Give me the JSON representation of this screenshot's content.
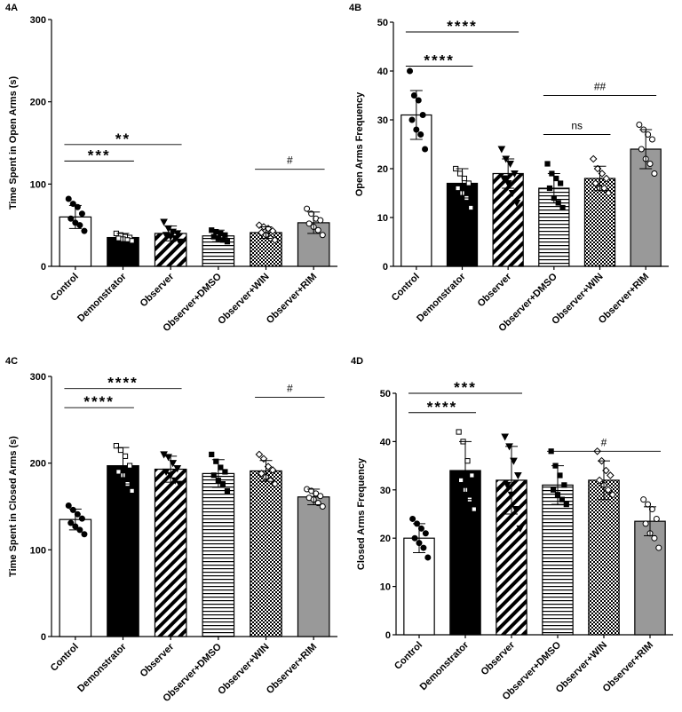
{
  "chart_data": [
    {
      "id": "4A",
      "type": "bar",
      "panel_label": "4A",
      "ylabel": "Time Spent in Open Arms (s)",
      "ylim": [
        0,
        300
      ],
      "yticks": [
        0,
        100,
        200,
        300
      ],
      "categories": [
        "Control",
        "Demonstrator",
        "Observer",
        "Observer+DMSO",
        "Observer+WIN",
        "Observer+RIM"
      ],
      "values": [
        60,
        35,
        40,
        37,
        41,
        53
      ],
      "error": [
        14,
        5,
        9,
        7,
        7,
        13
      ],
      "points": [
        [
          82,
          76,
          72,
          64,
          58,
          53,
          50,
          43
        ],
        [
          40,
          38,
          36,
          35,
          34,
          33,
          32,
          31
        ],
        [
          54,
          46,
          42,
          40,
          38,
          36,
          34,
          30
        ],
        [
          44,
          42,
          40,
          38,
          36,
          34,
          32,
          30
        ],
        [
          50,
          48,
          46,
          43,
          41,
          38,
          34,
          32
        ],
        [
          70,
          64,
          58,
          56,
          52,
          48,
          44,
          38
        ]
      ],
      "annotations": [
        {
          "text": "***",
          "from": 0,
          "to": 1,
          "y": 128
        },
        {
          "text": "**",
          "from": 0,
          "to": 2,
          "y": 148
        },
        {
          "text": "#",
          "from": 4,
          "to": 5,
          "y": 118
        }
      ]
    },
    {
      "id": "4B",
      "type": "bar",
      "panel_label": "4B",
      "ylabel": "Open Arms Frequency",
      "ylim": [
        0,
        50
      ],
      "yticks": [
        0,
        10,
        20,
        30,
        40,
        50
      ],
      "categories": [
        "Control",
        "Demonstrator",
        "Observer",
        "Observer+DMSO",
        "Observer+WIN",
        "Observer+RIM"
      ],
      "values": [
        31,
        17,
        19,
        16,
        18,
        24
      ],
      "error": [
        5,
        3,
        3,
        3,
        2.5,
        4
      ],
      "points": [
        [
          40,
          35,
          34,
          31,
          30,
          28,
          27,
          24
        ],
        [
          20,
          19,
          18,
          17,
          16,
          15,
          14,
          12
        ],
        [
          24,
          22,
          21,
          19,
          18,
          17,
          15,
          13
        ],
        [
          21,
          19,
          18,
          17,
          16,
          14,
          13,
          12
        ],
        [
          22,
          20,
          19,
          18,
          17,
          16,
          16,
          15
        ],
        [
          29,
          28,
          27,
          26,
          24,
          22,
          21,
          19
        ]
      ],
      "annotations": [
        {
          "text": "****",
          "from": 0,
          "to": 1,
          "y": 41
        },
        {
          "text": "****",
          "from": 0,
          "to": 2,
          "y": 48
        },
        {
          "text": "ns",
          "from": 3,
          "to": 4,
          "y": 27
        },
        {
          "text": "##",
          "from": 3,
          "to": 5,
          "y": 35
        }
      ]
    },
    {
      "id": "4C",
      "type": "bar",
      "panel_label": "4C",
      "ylabel": "Time Spent in Closed Arms (s)",
      "ylim": [
        0,
        300
      ],
      "yticks": [
        0,
        100,
        200,
        300
      ],
      "categories": [
        "Control",
        "Demonstrator",
        "Observer",
        "Observer+DMSO",
        "Observer+WIN",
        "Observer+RIM"
      ],
      "values": [
        135,
        197,
        193,
        188,
        191,
        161
      ],
      "error": [
        12,
        21,
        15,
        16,
        12,
        9
      ],
      "points": [
        [
          151,
          146,
          141,
          136,
          131,
          127,
          123,
          118
        ],
        [
          220,
          215,
          208,
          197,
          190,
          186,
          176,
          168
        ],
        [
          210,
          207,
          200,
          194,
          190,
          186,
          180,
          176
        ],
        [
          210,
          202,
          195,
          190,
          186,
          180,
          176,
          168
        ],
        [
          210,
          205,
          196,
          192,
          188,
          184,
          180,
          176
        ],
        [
          170,
          168,
          165,
          162,
          160,
          158,
          154,
          150
        ]
      ],
      "annotations": [
        {
          "text": "****",
          "from": 0,
          "to": 1,
          "y": 264
        },
        {
          "text": "****",
          "from": 0,
          "to": 2,
          "y": 286
        },
        {
          "text": "#",
          "from": 4,
          "to": 5,
          "y": 276
        }
      ]
    },
    {
      "id": "4D",
      "type": "bar",
      "panel_label": "4D",
      "ylabel": "Closed Arms Frequency",
      "ylim": [
        0,
        50
      ],
      "yticks": [
        0,
        10,
        20,
        30,
        40,
        50
      ],
      "categories": [
        "Control",
        "Demonstrator",
        "Observer",
        "Observer+DMSO",
        "Observer+WIN",
        "Observer+RIM"
      ],
      "values": [
        20,
        34,
        32,
        31,
        32,
        23.5
      ],
      "error": [
        3,
        6,
        7,
        4,
        4,
        3
      ],
      "points": [
        [
          24,
          23,
          22,
          21,
          20,
          19,
          18,
          16
        ],
        [
          42,
          40,
          36,
          33,
          32,
          30,
          28,
          26
        ],
        [
          41,
          39,
          36,
          33,
          31,
          29,
          26,
          22
        ],
        [
          38,
          35,
          33,
          31,
          30,
          29,
          28,
          27
        ],
        [
          38,
          36,
          34,
          33,
          32,
          31,
          30,
          29
        ],
        [
          28,
          27,
          26,
          24,
          23,
          21,
          20,
          18
        ]
      ],
      "annotations": [
        {
          "text": "****",
          "from": 0,
          "to": 1,
          "y": 46
        },
        {
          "text": "***",
          "from": 0,
          "to": 2,
          "y": 50
        },
        {
          "text": "#",
          "from": 3,
          "to": 5,
          "y": 38
        }
      ]
    }
  ]
}
